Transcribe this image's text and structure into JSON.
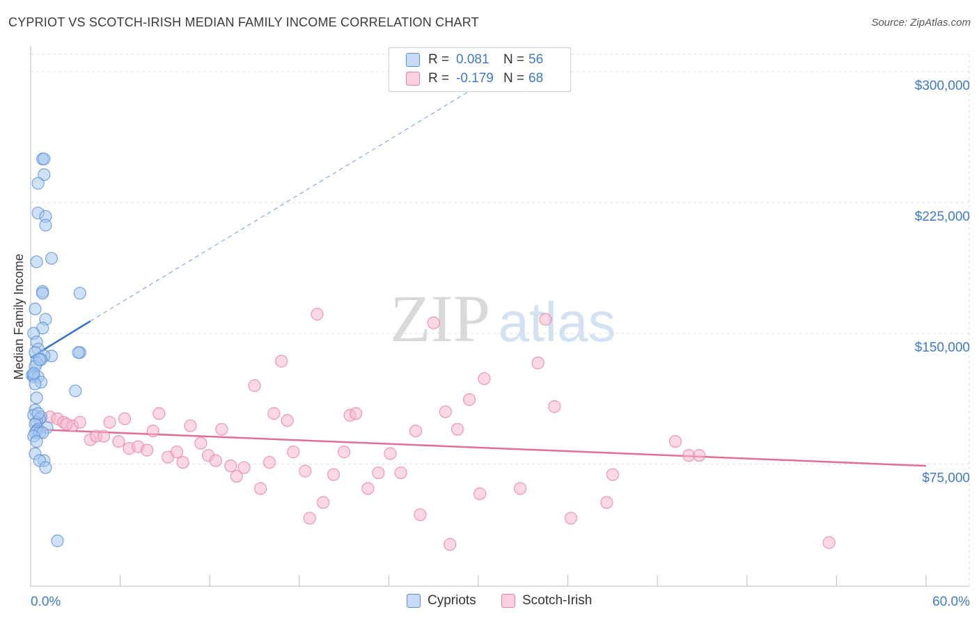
{
  "header": {
    "title": "CYPRIOT VS SCOTCH-IRISH MEDIAN FAMILY INCOME CORRELATION CHART",
    "source": "Source: ZipAtlas.com"
  },
  "watermark": {
    "zip": "ZIP",
    "atlas": "atlas"
  },
  "legend": {
    "rows": [
      {
        "r_label": "R =",
        "r_value": "0.081",
        "n_label": "N =",
        "n_value": "56"
      },
      {
        "r_label": "R =",
        "r_value": "-0.179",
        "n_label": "N =",
        "n_value": "68"
      }
    ]
  },
  "colors": {
    "cypriot_fill": "#a8c8f0",
    "cypriot_stroke": "#5b8fd6",
    "cypriot_line": "#2e6fd0",
    "scotch_fill": "#f7b8cc",
    "scotch_stroke": "#e87fa3",
    "scotch_line": "#e06e95",
    "axis_label": "#3f79c9",
    "grid": "#dddddd"
  },
  "chart_data": {
    "type": "scatter",
    "title": "CYPRIOT VS SCOTCH-IRISH MEDIAN FAMILY INCOME CORRELATION CHART",
    "xlabel": "",
    "ylabel": "Median Family Income",
    "xlim": [
      0,
      60
    ],
    "ylim": [
      5000,
      310000
    ],
    "x_tick_labels": [
      "0.0%",
      "60.0%"
    ],
    "y_ticks": [
      75000,
      150000,
      225000,
      300000
    ],
    "y_tick_labels": [
      "$75,000",
      "$150,000",
      "$225,000",
      "$300,000"
    ],
    "grid": true,
    "legend_position": "top-center",
    "series": [
      {
        "name": "Cypriots",
        "r": 0.081,
        "n": 56,
        "trend": {
          "x": [
            0.0,
            4.0
          ],
          "y": [
            136000,
            157000
          ],
          "dashed_extension_to": [
            30.0,
            292000
          ]
        },
        "points": [
          [
            0.8,
            250000
          ],
          [
            0.9,
            250000
          ],
          [
            0.9,
            241000
          ],
          [
            0.5,
            236000
          ],
          [
            0.5,
            219000
          ],
          [
            1.0,
            217000
          ],
          [
            1.0,
            212000
          ],
          [
            0.4,
            191000
          ],
          [
            1.4,
            193000
          ],
          [
            0.8,
            174000
          ],
          [
            0.8,
            173000
          ],
          [
            3.3,
            173000
          ],
          [
            0.3,
            164000
          ],
          [
            1.0,
            158000
          ],
          [
            0.8,
            153000
          ],
          [
            0.2,
            150000
          ],
          [
            0.4,
            145000
          ],
          [
            0.5,
            141000
          ],
          [
            0.3,
            139000
          ],
          [
            3.3,
            139000
          ],
          [
            3.2,
            139000
          ],
          [
            1.4,
            137000
          ],
          [
            0.9,
            137000
          ],
          [
            0.7,
            135000
          ],
          [
            0.4,
            133000
          ],
          [
            0.3,
            131000
          ],
          [
            0.2,
            126000
          ],
          [
            0.1,
            126000
          ],
          [
            0.2,
            125000
          ],
          [
            0.5,
            125000
          ],
          [
            0.7,
            122000
          ],
          [
            0.3,
            121000
          ],
          [
            3.0,
            117000
          ],
          [
            0.4,
            113000
          ],
          [
            0.3,
            106000
          ],
          [
            0.2,
            103000
          ],
          [
            0.7,
            102000
          ],
          [
            0.6,
            101000
          ],
          [
            0.4,
            99000
          ],
          [
            0.3,
            98000
          ],
          [
            1.1,
            96000
          ],
          [
            0.5,
            95000
          ],
          [
            0.4,
            94000
          ],
          [
            0.3,
            93000
          ],
          [
            0.6,
            93000
          ],
          [
            0.8,
            93000
          ],
          [
            0.2,
            91000
          ],
          [
            0.4,
            88000
          ],
          [
            0.3,
            81000
          ],
          [
            0.9,
            77000
          ],
          [
            0.6,
            77000
          ],
          [
            1.0,
            73000
          ],
          [
            1.8,
            31000
          ],
          [
            0.2,
            127000
          ],
          [
            0.6,
            135000
          ],
          [
            0.5,
            104000
          ]
        ]
      },
      {
        "name": "Scotch-Irish",
        "r": -0.179,
        "n": 68,
        "trend": {
          "x": [
            0.0,
            60.0
          ],
          "y": [
            95000,
            74000
          ]
        },
        "points": [
          [
            1.3,
            102000
          ],
          [
            1.8,
            101000
          ],
          [
            0.6,
            101000
          ],
          [
            2.2,
            99000
          ],
          [
            2.8,
            97000
          ],
          [
            3.3,
            99000
          ],
          [
            4.0,
            89000
          ],
          [
            4.4,
            91000
          ],
          [
            4.9,
            91000
          ],
          [
            5.3,
            99000
          ],
          [
            5.9,
            88000
          ],
          [
            6.3,
            101000
          ],
          [
            6.6,
            84000
          ],
          [
            7.2,
            85000
          ],
          [
            7.8,
            83000
          ],
          [
            8.2,
            94000
          ],
          [
            8.6,
            104000
          ],
          [
            9.2,
            79000
          ],
          [
            9.8,
            82000
          ],
          [
            10.2,
            76000
          ],
          [
            10.7,
            97000
          ],
          [
            11.4,
            87000
          ],
          [
            11.9,
            80000
          ],
          [
            12.4,
            77000
          ],
          [
            12.8,
            95000
          ],
          [
            13.4,
            74000
          ],
          [
            13.8,
            68000
          ],
          [
            14.3,
            73000
          ],
          [
            15.0,
            120000
          ],
          [
            15.4,
            61000
          ],
          [
            16.0,
            76000
          ],
          [
            16.3,
            104000
          ],
          [
            16.8,
            134000
          ],
          [
            17.2,
            100000
          ],
          [
            17.6,
            82000
          ],
          [
            18.4,
            71000
          ],
          [
            18.7,
            44000
          ],
          [
            19.2,
            161000
          ],
          [
            19.6,
            53000
          ],
          [
            20.3,
            69000
          ],
          [
            21.0,
            82000
          ],
          [
            21.4,
            103000
          ],
          [
            21.8,
            104000
          ],
          [
            22.6,
            61000
          ],
          [
            23.3,
            70000
          ],
          [
            24.1,
            81000
          ],
          [
            24.8,
            70000
          ],
          [
            25.8,
            94000
          ],
          [
            26.1,
            46000
          ],
          [
            27.0,
            156000
          ],
          [
            27.8,
            105000
          ],
          [
            28.1,
            29000
          ],
          [
            28.6,
            95000
          ],
          [
            29.4,
            112000
          ],
          [
            30.1,
            58000
          ],
          [
            30.4,
            124000
          ],
          [
            32.8,
            61000
          ],
          [
            34.0,
            133000
          ],
          [
            34.5,
            158000
          ],
          [
            35.1,
            108000
          ],
          [
            36.2,
            44000
          ],
          [
            38.6,
            53000
          ],
          [
            39.0,
            69000
          ],
          [
            43.2,
            88000
          ],
          [
            44.1,
            80000
          ],
          [
            44.8,
            80000
          ],
          [
            53.5,
            30000
          ],
          [
            2.4,
            98000
          ]
        ]
      }
    ]
  },
  "bottom_legend": {
    "items": [
      "Cypriots",
      "Scotch-Irish"
    ]
  }
}
